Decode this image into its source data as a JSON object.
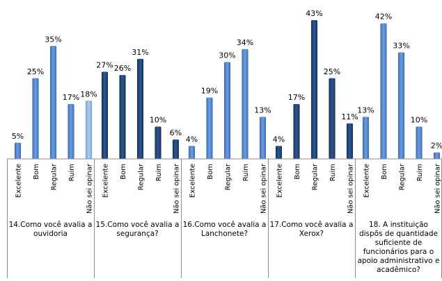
{
  "chart_data": {
    "type": "bar",
    "categories": [
      "Excelente",
      "Bom",
      "Regular",
      "Ruim",
      "Não sei opinar"
    ],
    "unit": "%",
    "ylim": [
      0,
      45
    ],
    "legend": "none",
    "grid": false,
    "groups": [
      {
        "title": "14.Como você avalia a ouvidoria",
        "values": [
          5,
          25,
          35,
          17,
          18
        ],
        "colors": [
          "#4a7fcb",
          "#4a7fcb",
          "#4a7fcb",
          "#4a7fcb",
          "#8fb4e6"
        ]
      },
      {
        "title": "15.Como você avalia a segurança?",
        "values": [
          27,
          26,
          31,
          10,
          6
        ],
        "colors": [
          "#1f3f6e",
          "#1f3f6e",
          "#1f3f6e",
          "#1f3f6e",
          "#1f3f6e"
        ]
      },
      {
        "title": "16.Como você avalia a Lanchonete?",
        "values": [
          4,
          19,
          30,
          34,
          13
        ],
        "colors": [
          "#4a7fcb",
          "#4a7fcb",
          "#4a7fcb",
          "#4a7fcb",
          "#4a7fcb"
        ]
      },
      {
        "title": "17.Como você avalia a Xerox?",
        "values": [
          4,
          17,
          43,
          25,
          11
        ],
        "colors": [
          "#1f3f6e",
          "#1f3f6e",
          "#1f3f6e",
          "#1f3f6e",
          "#1f3f6e"
        ]
      },
      {
        "title": "18. A instituição dispõs de quantidade suficiente de funcionários para o apoio administrativo e acadêmico?",
        "values": [
          13,
          42,
          33,
          10,
          2
        ],
        "colors": [
          "#4a7fcb",
          "#4a7fcb",
          "#4a7fcb",
          "#4a7fcb",
          "#4a7fcb"
        ]
      }
    ]
  }
}
